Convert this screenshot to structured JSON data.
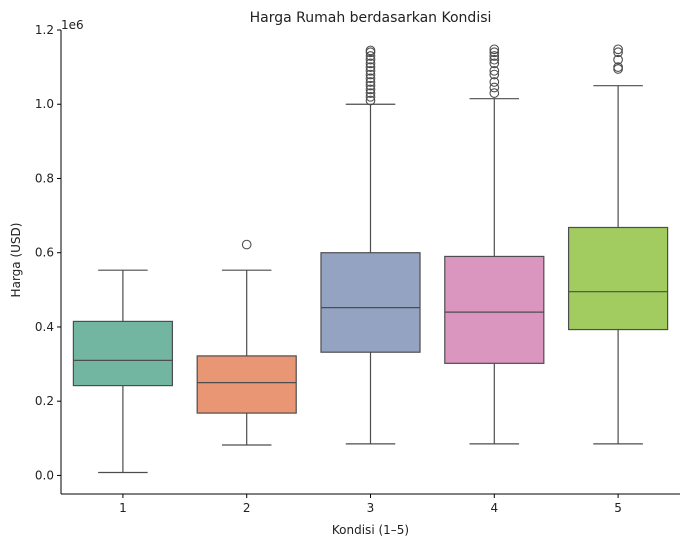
{
  "chart_data": {
    "type": "box",
    "title": "Harga Rumah berdasarkan Kondisi",
    "xlabel": "Kondisi (1–5)",
    "ylabel": "Harga (USD)",
    "y_offset_label": "1e6",
    "y_scale": 1000000,
    "ylim": [
      -50000,
      1200000
    ],
    "yticks": [
      0,
      200000,
      400000,
      600000,
      800000,
      1000000,
      1200000
    ],
    "ytick_labels": [
      "0.0",
      "0.2",
      "0.4",
      "0.6",
      "0.8",
      "1.0",
      "1.2"
    ],
    "categories": [
      "1",
      "2",
      "3",
      "4",
      "5"
    ],
    "grid": false,
    "legend": "none",
    "boxes": [
      {
        "category": "1",
        "color": "#72b6a1",
        "whisker_low": 8000,
        "q1": 242000,
        "median": 310000,
        "q3": 415000,
        "whisker_high": 553000,
        "outliers": []
      },
      {
        "category": "2",
        "color": "#e99675",
        "whisker_low": 82000,
        "q1": 168000,
        "median": 250000,
        "q3": 322000,
        "whisker_high": 553000,
        "outliers": [
          622000
        ]
      },
      {
        "category": "3",
        "color": "#95a3c3",
        "whisker_low": 85000,
        "q1": 332000,
        "median": 452000,
        "q3": 600000,
        "whisker_high": 1000000,
        "outliers": [
          1010000,
          1020000,
          1030000,
          1040000,
          1050000,
          1060000,
          1070000,
          1080000,
          1090000,
          1100000,
          1110000,
          1120000,
          1130000,
          1140000,
          1145000
        ]
      },
      {
        "category": "4",
        "color": "#db96c0",
        "whisker_low": 85000,
        "q1": 302000,
        "median": 440000,
        "q3": 590000,
        "whisker_high": 1015000,
        "outliers": [
          1030000,
          1045000,
          1060000,
          1080000,
          1090000,
          1110000,
          1120000,
          1130000,
          1140000,
          1148000
        ]
      },
      {
        "category": "5",
        "color": "#a2cb60",
        "whisker_low": 85000,
        "q1": 393000,
        "median": 495000,
        "q3": 668000,
        "whisker_high": 1050000,
        "outliers": [
          1095000,
          1100000,
          1120000,
          1140000,
          1148000
        ]
      }
    ]
  }
}
